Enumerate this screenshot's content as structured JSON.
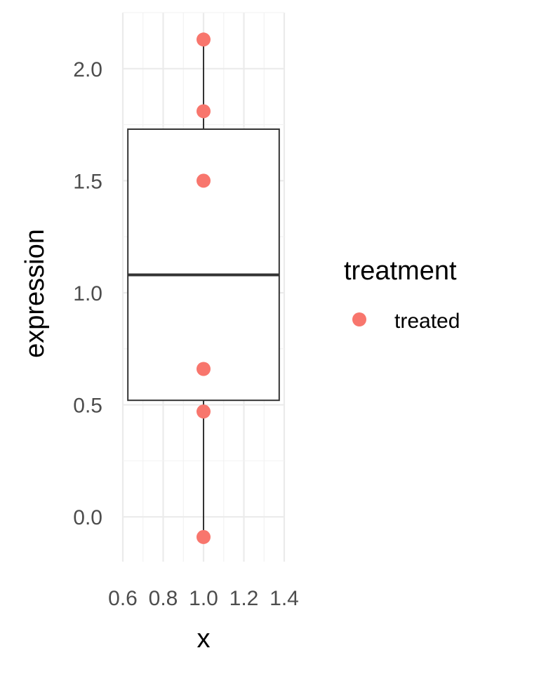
{
  "chart_data": {
    "type": "boxplot",
    "title": "",
    "xlabel": "x",
    "ylabel": "expression",
    "xlim": [
      0.6,
      1.4
    ],
    "ylim": [
      -0.2,
      2.25
    ],
    "x_ticks": [
      "0.6",
      "0.8",
      "1.0",
      "1.2",
      "1.4"
    ],
    "y_ticks": [
      "0.0",
      "0.5",
      "1.0",
      "1.5",
      "2.0"
    ],
    "grid": true,
    "legend": {
      "title": "treatment",
      "position": "right",
      "entries": [
        "treated"
      ]
    },
    "box": {
      "x": 1.0,
      "q1": 0.52,
      "median": 1.08,
      "q3": 1.73,
      "whisker_low": -0.09,
      "whisker_high": 2.13
    },
    "series": [
      {
        "name": "treated",
        "color": "#F8766D",
        "points": [
          {
            "x": 1.0,
            "y": 2.13
          },
          {
            "x": 1.0,
            "y": 1.81
          },
          {
            "x": 1.0,
            "y": 1.5
          },
          {
            "x": 1.0,
            "y": 0.66
          },
          {
            "x": 1.0,
            "y": 0.47
          },
          {
            "x": 1.0,
            "y": -0.09
          }
        ]
      }
    ]
  }
}
